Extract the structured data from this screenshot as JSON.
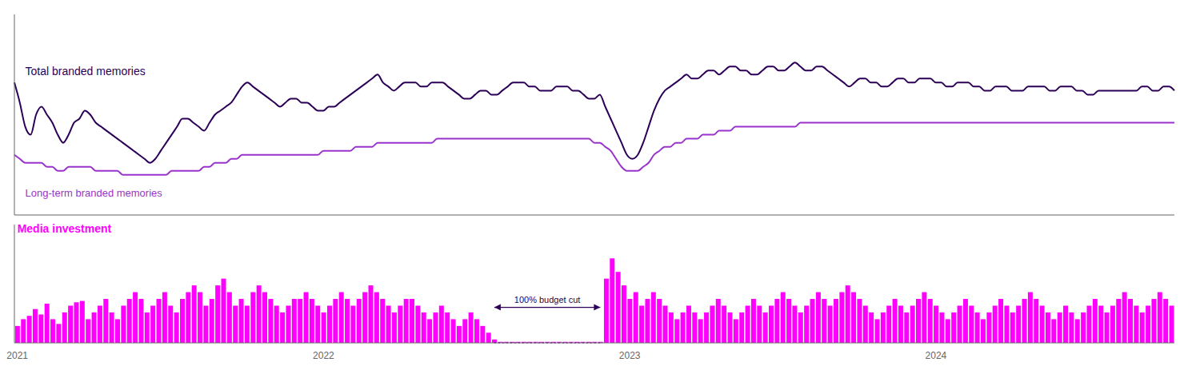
{
  "chart_data": [
    {
      "type": "line",
      "series": [
        {
          "name": "Total branded memories",
          "color": "#2d0057",
          "values": [
            68,
            63,
            57,
            55,
            60,
            62,
            60,
            58,
            55,
            53,
            55,
            58,
            59,
            61,
            60,
            58,
            57,
            56,
            55,
            54,
            53,
            52,
            51,
            50,
            49,
            48,
            49,
            51,
            53,
            55,
            57,
            59,
            59,
            58,
            57,
            56,
            58,
            60,
            61,
            62,
            63,
            65,
            67,
            68,
            67,
            66,
            65,
            64,
            63,
            62,
            63,
            64,
            64,
            63,
            63,
            62,
            61,
            61,
            62,
            62,
            63,
            64,
            65,
            66,
            67,
            68,
            69,
            70,
            68,
            67,
            66,
            67,
            68,
            68,
            68,
            67,
            67,
            68,
            68,
            68,
            67,
            66,
            65,
            64,
            64,
            65,
            66,
            66,
            65,
            65,
            66,
            67,
            68,
            68,
            68,
            67,
            67,
            66,
            66,
            66,
            67,
            67,
            67,
            66,
            66,
            65,
            64,
            64,
            65,
            62,
            59,
            56,
            53,
            50,
            49,
            50,
            53,
            57,
            61,
            64,
            66,
            67,
            68,
            69,
            70,
            69,
            69,
            70,
            71,
            71,
            70,
            71,
            72,
            72,
            71,
            71,
            70,
            70,
            71,
            72,
            72,
            71,
            71,
            72,
            73,
            72,
            71,
            71,
            72,
            72,
            71,
            70,
            69,
            68,
            67,
            68,
            69,
            69,
            68,
            68,
            67,
            67,
            68,
            69,
            69,
            68,
            68,
            69,
            69,
            69,
            68,
            68,
            67,
            67,
            68,
            68,
            68,
            67,
            67,
            66,
            66,
            67,
            67,
            67,
            66,
            66,
            66,
            67,
            67,
            67,
            67,
            66,
            66,
            67,
            67,
            67,
            66,
            66,
            65,
            65,
            66,
            66,
            66,
            66,
            66,
            66,
            66,
            66,
            67,
            67,
            66,
            66,
            67,
            67,
            66
          ]
        },
        {
          "name": "Long-term branded memories",
          "color": "#9933cc",
          "values": [
            50,
            49,
            48,
            48,
            48,
            48,
            47,
            47,
            46,
            46,
            47,
            47,
            47,
            47,
            47,
            46,
            46,
            46,
            46,
            46,
            45,
            45,
            45,
            45,
            45,
            45,
            45,
            45,
            45,
            46,
            46,
            46,
            46,
            46,
            46,
            47,
            47,
            48,
            48,
            48,
            49,
            49,
            50,
            50,
            50,
            50,
            50,
            50,
            50,
            50,
            50,
            50,
            50,
            50,
            50,
            50,
            50,
            51,
            51,
            51,
            51,
            51,
            51,
            52,
            52,
            52,
            52,
            53,
            53,
            53,
            53,
            53,
            53,
            53,
            53,
            53,
            53,
            53,
            54,
            54,
            54,
            54,
            54,
            54,
            54,
            54,
            54,
            54,
            54,
            54,
            54,
            54,
            54,
            54,
            54,
            54,
            54,
            54,
            54,
            54,
            54,
            54,
            54,
            54,
            54,
            54,
            54,
            53,
            53,
            52,
            51,
            49,
            47,
            46,
            46,
            46,
            47,
            48,
            50,
            51,
            52,
            52,
            53,
            53,
            54,
            54,
            54,
            55,
            55,
            55,
            56,
            56,
            56,
            57,
            57,
            57,
            57,
            57,
            57,
            57,
            57,
            57,
            57,
            57,
            57,
            58,
            58,
            58,
            58,
            58,
            58,
            58,
            58,
            58,
            58,
            58,
            58,
            58,
            58,
            58,
            58,
            58,
            58,
            58,
            58,
            58,
            58,
            58,
            58,
            58,
            58,
            58,
            58,
            58,
            58,
            58,
            58,
            58,
            58,
            58,
            58,
            58,
            58,
            58,
            58,
            58,
            58,
            58,
            58,
            58,
            58,
            58,
            58,
            58,
            58,
            58,
            58,
            58,
            58,
            58,
            58,
            58,
            58,
            58,
            58,
            58,
            58,
            58,
            58,
            58,
            58,
            58,
            58,
            58,
            58
          ]
        }
      ],
      "ylim": [
        35,
        85
      ],
      "tick_labels": false
    },
    {
      "type": "bar",
      "categories": [
        "2021",
        null,
        null,
        null,
        null,
        null,
        null,
        null,
        null,
        null,
        null,
        null,
        null,
        null,
        null,
        null,
        null,
        null,
        null,
        null,
        null,
        null,
        null,
        null,
        null,
        null,
        null,
        null,
        null,
        null,
        null,
        null,
        null,
        null,
        null,
        null,
        null,
        null,
        null,
        null,
        null,
        null,
        null,
        null,
        null,
        null,
        null,
        null,
        null,
        null,
        null,
        null,
        "2022",
        null,
        null,
        null,
        null,
        null,
        null,
        null,
        null,
        null,
        null,
        null,
        null,
        null,
        null,
        null,
        null,
        null,
        null,
        null,
        null,
        null,
        null,
        null,
        null,
        null,
        null,
        null,
        null,
        null,
        null,
        null,
        null,
        null,
        null,
        null,
        null,
        null,
        null,
        null,
        null,
        null,
        null,
        null,
        null,
        null,
        null,
        null,
        null,
        null,
        null,
        null,
        "2023",
        null,
        null,
        null,
        null,
        null,
        null,
        null,
        null,
        null,
        null,
        null,
        null,
        null,
        null,
        null,
        null,
        null,
        null,
        null,
        null,
        null,
        null,
        null,
        null,
        null,
        null,
        null,
        null,
        null,
        null,
        null,
        null,
        null,
        null,
        null,
        null,
        null,
        null,
        null,
        null,
        null,
        null,
        null,
        null,
        null,
        null,
        null,
        null,
        null,
        null,
        null,
        "2024",
        null,
        null,
        null,
        null,
        null,
        null,
        null,
        null,
        null,
        null,
        null,
        null,
        null,
        null,
        null,
        null,
        null,
        null,
        null,
        null,
        null,
        null,
        null,
        null,
        null,
        null,
        null,
        null,
        null,
        null,
        null,
        null,
        null,
        null,
        null,
        null,
        null,
        null,
        null,
        null
      ],
      "series": [
        {
          "name": "Media investment",
          "color": "#ff00ff",
          "values": [
            2.5,
            3.5,
            4.0,
            5.0,
            4.2,
            5.8,
            3.5,
            2.8,
            4.5,
            5.5,
            6.0,
            6.2,
            3.5,
            4.5,
            5.5,
            6.5,
            4.5,
            3.5,
            5.5,
            6.5,
            7.5,
            6.5,
            4.5,
            5.5,
            6.5,
            7.5,
            5.5,
            4.5,
            6.5,
            7.5,
            8.5,
            7.5,
            5.5,
            6.5,
            8.5,
            9.5,
            7.5,
            5.5,
            6.5,
            5.5,
            7.5,
            8.5,
            7.5,
            6.5,
            5.5,
            4.5,
            5.5,
            6.5,
            6.5,
            7.5,
            6.5,
            5.5,
            4.5,
            5.5,
            6.5,
            7.5,
            6.5,
            5.5,
            6.5,
            7.5,
            8.5,
            7.5,
            6.5,
            5.5,
            4.5,
            5.5,
            6.5,
            6.5,
            5.5,
            4.5,
            3.5,
            4.5,
            5.5,
            4.5,
            3.5,
            2.5,
            3.5,
            4.5,
            3.5,
            2.5,
            1.5,
            0.5,
            0.15,
            0.15,
            0.15,
            0.15,
            0.15,
            0.15,
            0.15,
            0.15,
            0.15,
            0.15,
            0.15,
            0.15,
            0.15,
            0.15,
            0.15,
            0.15,
            0.15,
            0.15,
            9.5,
            12.5,
            10.5,
            8.5,
            6.5,
            7.5,
            5.5,
            6.5,
            7.5,
            6.5,
            5.5,
            4.5,
            3.5,
            4.5,
            5.5,
            4.5,
            3.5,
            4.5,
            5.5,
            6.5,
            5.5,
            4.5,
            3.5,
            4.5,
            5.5,
            6.5,
            5.5,
            4.5,
            5.5,
            6.5,
            7.5,
            6.5,
            5.5,
            4.5,
            5.5,
            6.5,
            7.5,
            6.5,
            5.5,
            6.5,
            7.5,
            8.5,
            7.5,
            6.5,
            5.5,
            4.5,
            3.5,
            4.5,
            5.5,
            6.5,
            5.5,
            4.5,
            5.5,
            6.5,
            7.5,
            6.5,
            5.5,
            4.5,
            3.5,
            4.5,
            5.5,
            6.5,
            5.5,
            4.5,
            3.5,
            4.5,
            5.5,
            6.5,
            5.5,
            4.5,
            5.5,
            6.5,
            7.5,
            6.5,
            5.5,
            4.5,
            3.5,
            4.5,
            5.5,
            4.5,
            3.5,
            4.5,
            5.5,
            6.5,
            5.5,
            4.5,
            5.5,
            6.5,
            7.5,
            6.5,
            5.5,
            4.5,
            5.5,
            6.5,
            7.5,
            6.5,
            5.5
          ]
        }
      ],
      "ylim": [
        0,
        17.5
      ],
      "tick_labels": "x",
      "annotations": [
        {
          "text": "100% budget cut",
          "x_start": 81,
          "x_end": 99,
          "color": "#2d0057"
        }
      ]
    }
  ]
}
